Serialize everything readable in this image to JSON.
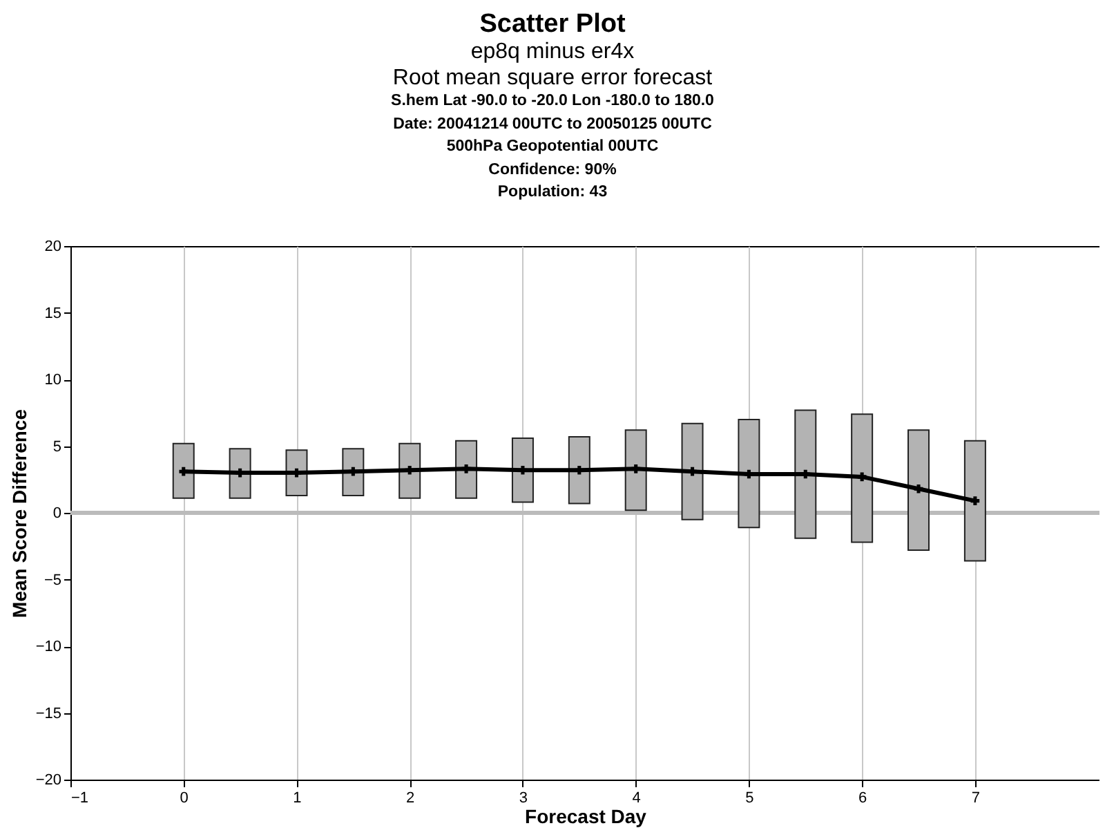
{
  "chart_data": {
    "title": "Scatter Plot",
    "subtitle": "ep8q minus er4x",
    "annotations": [
      "Root mean square error forecast",
      "S.hem  Lat  -90.0 to -20.0 Lon  -180.0 to  180.0",
      "Date: 20041214 00UTC to 20050125 00UTC",
      "500hPa Geopotential 00UTC",
      "Confidence: 90%",
      "Population: 43"
    ],
    "type": "line",
    "xlabel": "Forecast Day",
    "ylabel": "Mean Score Difference",
    "xlim": [
      -1,
      8.1
    ],
    "xticks": [
      -1,
      0,
      1,
      2,
      3,
      4,
      5,
      6,
      7
    ],
    "ylim": [
      -20,
      20
    ],
    "yticks": [
      -20,
      -15,
      -10,
      -5,
      0,
      5,
      10,
      15,
      20
    ],
    "grid": "x",
    "ref_lines": [
      {
        "axis": "y",
        "value": 0,
        "color": "#bbbbbb"
      }
    ],
    "series": [
      {
        "type": "bar",
        "color": "#b3b3b3",
        "x": [
          0,
          0.5,
          1,
          1.5,
          2,
          2.5,
          3,
          3.5,
          4,
          4.5,
          5,
          5.5,
          6,
          6.5,
          7
        ],
        "base": [
          1.1,
          1.1,
          1.3,
          1.3,
          1.1,
          1.1,
          0.8,
          0.7,
          0.2,
          -0.5,
          -1.1,
          -1.9,
          -2.2,
          -2.8,
          -3.6
        ],
        "values": [
          4.1,
          3.7,
          3.4,
          3.5,
          4.1,
          4.3,
          4.8,
          5.0,
          6.0,
          7.2,
          8.1,
          9.6,
          9.6,
          9.0,
          9.0
        ]
      },
      {
        "type": "line",
        "color": "#000000",
        "marker": "cross",
        "line_style": "solid",
        "x": [
          0,
          0.5,
          1,
          1.5,
          2,
          2.5,
          3,
          3.5,
          4,
          4.5,
          5,
          5.5,
          6,
          6.5,
          7
        ],
        "values": [
          3.1,
          3.0,
          3.0,
          3.1,
          3.2,
          3.3,
          3.2,
          3.2,
          3.3,
          3.1,
          2.9,
          2.9,
          2.7,
          1.8,
          0.9
        ]
      }
    ]
  }
}
